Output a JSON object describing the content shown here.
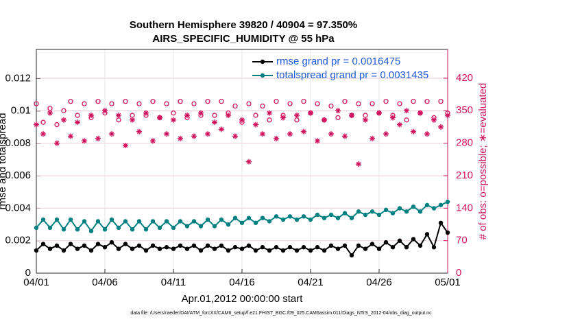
{
  "chart_data": {
    "type": "line",
    "title": "Southern Hemisphere 39820 / 40904 = 97.350%",
    "subtitle": "AIRS_SPECIFIC_HUMIDITY @ 55 hPa",
    "xlabel": "Apr.01,2012 00:00:00 start",
    "ylabel": "rmse and totalspread",
    "y2label": "# of obs: o=possible; ∗=evaluated",
    "footer": "data file: /Users/raeder/DAI/ATM_forcXX/CAM6_setup/f.e21.FHIST_BGC.f09_025.CAM6assim.011/Diags_NTrS_2012-04/obs_diag_output.nc",
    "xlim": [
      0,
      30
    ],
    "xticks": [
      {
        "value": 0,
        "label": "04/01"
      },
      {
        "value": 5,
        "label": "04/06"
      },
      {
        "value": 10,
        "label": "04/11"
      },
      {
        "value": 15,
        "label": "04/16"
      },
      {
        "value": 20,
        "label": "04/21"
      },
      {
        "value": 25,
        "label": "04/26"
      },
      {
        "value": 30,
        "label": "05/01"
      }
    ],
    "ylim": [
      0,
      0.0138
    ],
    "yticks": [
      0,
      0.002,
      0.004,
      0.006,
      0.008,
      0.01,
      0.012
    ],
    "y2lim": [
      0,
      482
    ],
    "y2ticks": [
      0,
      70,
      140,
      210,
      280,
      350,
      420
    ],
    "grid": true,
    "legend": "upper right",
    "x": [
      0,
      0.5,
      1,
      1.5,
      2,
      2.5,
      3,
      3.5,
      4,
      4.5,
      5,
      5.5,
      6,
      6.5,
      7,
      7.5,
      8,
      8.5,
      9,
      9.5,
      10,
      10.5,
      11,
      11.5,
      12,
      12.5,
      13,
      13.5,
      14,
      14.5,
      15,
      15.5,
      16,
      16.5,
      17,
      17.5,
      18,
      18.5,
      19,
      19.5,
      20,
      20.5,
      21,
      21.5,
      22,
      22.5,
      23,
      23.5,
      24,
      24.5,
      25,
      25.5,
      26,
      26.5,
      27,
      27.5,
      28,
      28.5,
      29,
      29.5,
      30
    ],
    "series": [
      {
        "name": "rmse grand pr = 0.0016475",
        "color": "#000000",
        "marker": "dot",
        "values": [
          0.0014,
          0.0018,
          0.0015,
          0.0017,
          0.0014,
          0.0018,
          0.0015,
          0.0017,
          0.0014,
          0.0018,
          0.0016,
          0.0019,
          0.0015,
          0.0018,
          0.0015,
          0.0017,
          0.0014,
          0.0017,
          0.0015,
          0.0016,
          0.0015,
          0.0017,
          0.0015,
          0.0017,
          0.0014,
          0.0017,
          0.0015,
          0.0017,
          0.0014,
          0.0016,
          0.0015,
          0.0017,
          0.0014,
          0.0016,
          0.0014,
          0.0016,
          0.0014,
          0.0016,
          0.0014,
          0.0016,
          0.0014,
          0.0016,
          0.0014,
          0.0017,
          0.0015,
          0.0017,
          0.0011,
          0.0017,
          0.0015,
          0.0018,
          0.0015,
          0.0019,
          0.0016,
          0.002,
          0.0016,
          0.0021,
          0.0017,
          0.0024,
          0.0016,
          0.0031,
          0.0025
        ]
      },
      {
        "name": "totalspread grand pr = 0.0031435",
        "color": "#008080",
        "marker": "dot",
        "values": [
          0.0028,
          0.0033,
          0.0028,
          0.0033,
          0.0027,
          0.0033,
          0.0027,
          0.0032,
          0.0026,
          0.0032,
          0.0027,
          0.0033,
          0.0028,
          0.0032,
          0.0027,
          0.0032,
          0.0027,
          0.0032,
          0.0028,
          0.0032,
          0.0028,
          0.0032,
          0.0029,
          0.0032,
          0.0029,
          0.0033,
          0.0029,
          0.0033,
          0.003,
          0.0034,
          0.0031,
          0.0034,
          0.0031,
          0.0034,
          0.0032,
          0.0035,
          0.0033,
          0.0035,
          0.0033,
          0.0035,
          0.0033,
          0.0036,
          0.0034,
          0.0036,
          0.0034,
          0.0037,
          0.0034,
          0.0038,
          0.0036,
          0.0038,
          0.0036,
          0.0039,
          0.0037,
          0.004,
          0.0038,
          0.0041,
          0.0038,
          0.0042,
          0.004,
          0.0042,
          0.0044
        ]
      },
      {
        "color": "#d1135f",
        "marker": "circle",
        "axis": "y2",
        "values": [
          365,
          325,
          355,
          320,
          350,
          370,
          340,
          365,
          335,
          370,
          345,
          365,
          330,
          370,
          340,
          365,
          340,
          370,
          335,
          365,
          345,
          370,
          335,
          365,
          340,
          370,
          340,
          370,
          345,
          360,
          325,
          365,
          340,
          360,
          330,
          370,
          340,
          365,
          330,
          370,
          345,
          365,
          330,
          360,
          335,
          370,
          340,
          365,
          340,
          365,
          345,
          370,
          340,
          365,
          330,
          370,
          345,
          370,
          335,
          370,
          345
        ]
      },
      {
        "color": "#d1135f",
        "marker": "asterisk",
        "axis": "y2",
        "values": [
          320,
          300,
          345,
          280,
          330,
          295,
          325,
          285,
          340,
          290,
          350,
          300,
          340,
          275,
          330,
          305,
          345,
          285,
          335,
          300,
          330,
          290,
          340,
          295,
          345,
          300,
          325,
          310,
          340,
          295,
          330,
          240,
          320,
          300,
          345,
          290,
          335,
          300,
          340,
          305,
          345,
          285,
          330,
          300,
          350,
          295,
          340,
          235,
          330,
          290,
          345,
          300,
          335,
          320,
          350,
          305,
          345,
          300,
          330,
          315,
          340
        ]
      }
    ]
  }
}
